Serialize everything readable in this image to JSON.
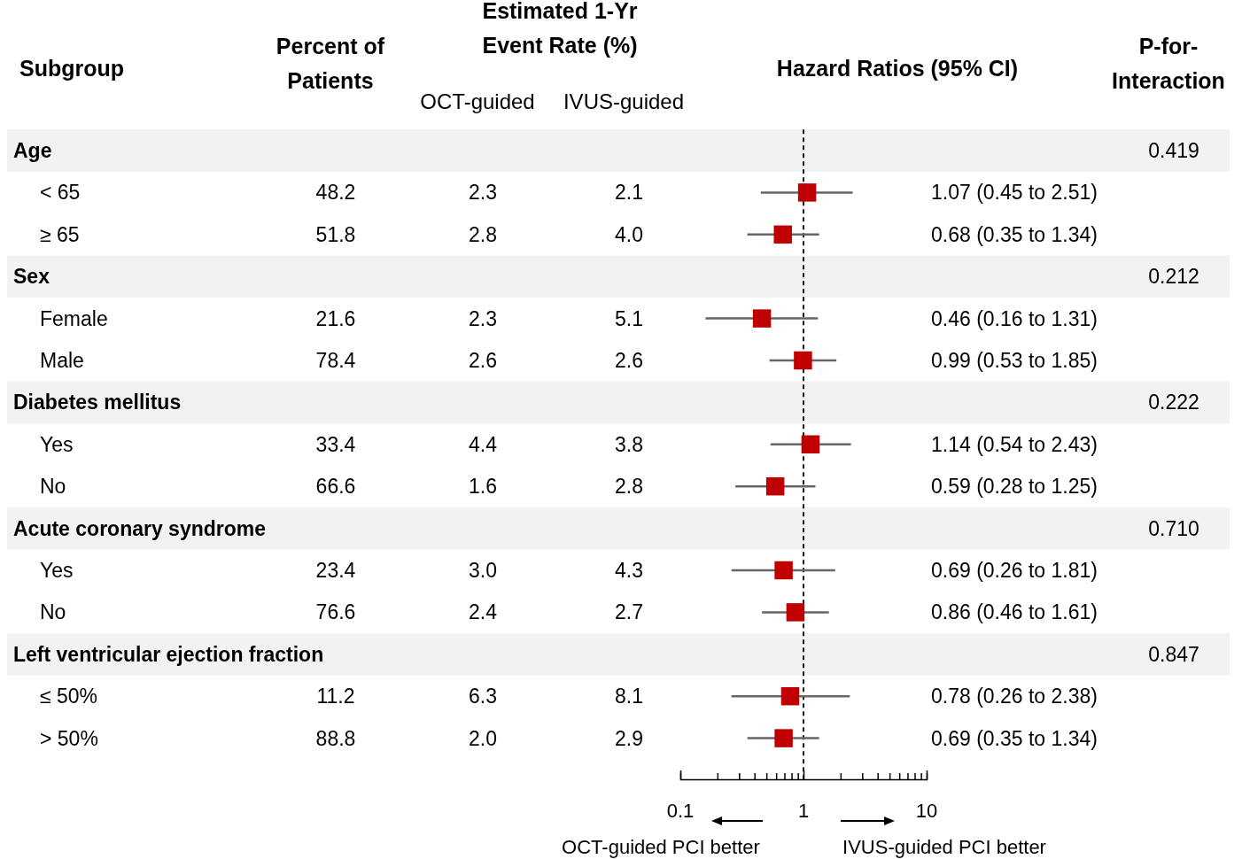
{
  "chart_data": [
    {
      "type": "other",
      "categories": [
        "Age",
        "< 65",
        "≥ 65",
        "Sex",
        "Female",
        "Male",
        "Diabetes mellitus",
        "Yes",
        "No",
        "Acute coronary syndrome",
        "Yes",
        "No",
        "Left ventricular ejection fraction",
        "≤ 50%",
        "> 50%"
      ],
      "series": [
        {
          "name": "Percent of Patients",
          "values": [
            null,
            48.2,
            51.8,
            null,
            21.6,
            78.4,
            null,
            33.4,
            66.6,
            null,
            23.4,
            76.6,
            null,
            11.2,
            88.8
          ],
          "value_labels": [
            null,
            "48.2",
            "51.8",
            null,
            "21.6",
            "78.4",
            null,
            "33.4",
            "66.6",
            null,
            "23.4",
            "76.6",
            null,
            "11.2",
            "88.8"
          ]
        },
        {
          "name": "OCT-guided",
          "values": [
            null,
            2.3,
            2.8,
            null,
            2.3,
            2.6,
            null,
            4.4,
            1.6,
            null,
            3.0,
            2.4,
            null,
            6.3,
            2.0
          ],
          "value_labels": [
            null,
            "2.3",
            "2.8",
            null,
            "2.3",
            "2.6",
            null,
            "4.4",
            "1.6",
            null,
            "3.0",
            "2.4",
            null,
            "6.3",
            "2.0"
          ]
        },
        {
          "name": "IVUS-guided",
          "values": [
            null,
            2.1,
            4.0,
            null,
            5.1,
            2.6,
            null,
            3.8,
            2.8,
            null,
            4.3,
            2.7,
            null,
            8.1,
            2.9
          ],
          "value_labels": [
            null,
            "2.1",
            "4.0",
            null,
            "5.1",
            "2.6",
            null,
            "3.8",
            "2.8",
            null,
            "4.3",
            "2.7",
            null,
            "8.1",
            "2.9"
          ]
        },
        {
          "name": "P-for-Interaction",
          "values": [
            0.419,
            null,
            null,
            0.212,
            null,
            null,
            0.222,
            null,
            null,
            0.71,
            null,
            null,
            0.847,
            null,
            null
          ],
          "value_labels": [
            "0.419",
            null,
            null,
            "0.212",
            null,
            null,
            "0.222",
            null,
            null,
            "0.710",
            null,
            null,
            "0.847",
            null,
            null
          ]
        }
      ],
      "annotations": [
        "Subgroup",
        "Estimated 1-Yr Event Rate (%)"
      ]
    },
    {
      "type": "scatter",
      "orientation": "horizontal",
      "categories": [
        null,
        null,
        null,
        null,
        null,
        null,
        null,
        null,
        null,
        null,
        null,
        null,
        null,
        null,
        null
      ],
      "series": [
        {
          "name": "Hazard Ratios (95% CI)",
          "color": "#c00000",
          "values": [
            null,
            1.07,
            0.68,
            null,
            0.46,
            0.99,
            null,
            1.14,
            0.59,
            null,
            0.69,
            0.86,
            null,
            0.78,
            0.69
          ],
          "errors": [
            null,
            [
              0.45,
              2.51
            ],
            [
              0.35,
              1.34
            ],
            null,
            [
              0.16,
              1.31
            ],
            [
              0.53,
              1.85
            ],
            null,
            [
              0.54,
              2.43
            ],
            [
              0.28,
              1.25
            ],
            null,
            [
              0.26,
              1.81
            ],
            [
              0.46,
              1.61
            ],
            null,
            [
              0.26,
              2.38
            ],
            [
              0.35,
              1.34
            ]
          ],
          "value_labels": [
            null,
            "1.07 (0.45 to 2.51)",
            "0.68 (0.35 to 1.34)",
            null,
            "0.46 (0.16 to 1.31)",
            "0.99 (0.53 to 1.85)",
            null,
            "1.14 (0.54 to 2.43)",
            "0.59 (0.28 to 1.25)",
            null,
            "0.69 (0.26 to 1.81)",
            "0.86 (0.46 to 1.61)",
            null,
            "0.78 (0.26 to 2.38)",
            "0.69 (0.35 to 1.34)"
          ]
        }
      ],
      "marker": "square",
      "log": "x",
      "xlim": [
        0.1,
        10
      ],
      "xticks": [
        0.1,
        {
          "value": 0.2,
          "label": null
        },
        {
          "value": 0.3,
          "label": null
        },
        {
          "value": 0.4,
          "label": null
        },
        {
          "value": 0.5,
          "label": null
        },
        {
          "value": 0.6,
          "label": null
        },
        {
          "value": 0.7,
          "label": null
        },
        {
          "value": 0.8,
          "label": null
        },
        {
          "value": 0.9,
          "label": null
        },
        1,
        {
          "value": 2,
          "label": null
        },
        {
          "value": 3,
          "label": null
        },
        {
          "value": 4,
          "label": null
        },
        {
          "value": 5,
          "label": null
        },
        {
          "value": 6,
          "label": null
        },
        {
          "value": 7,
          "label": null
        },
        {
          "value": 8,
          "label": null
        },
        {
          "value": 9,
          "label": null
        },
        10
      ],
      "ref_lines": [
        {
          "axis": "x",
          "value": 1,
          "color": "#000000",
          "line_style": "dashed"
        }
      ],
      "annotations": [
        "OCT-guided PCI better",
        "IVUS-guided PCI better"
      ]
    }
  ]
}
